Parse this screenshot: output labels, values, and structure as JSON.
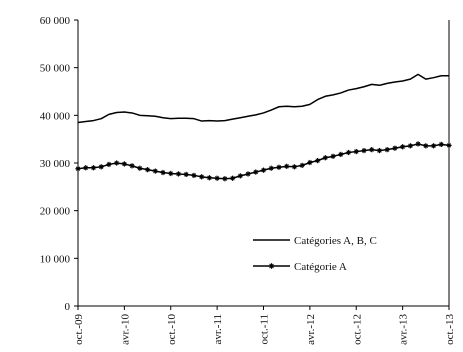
{
  "chart_data": {
    "type": "line",
    "title": "",
    "xlabel": "",
    "ylabel": "",
    "ylim": [
      0,
      60000
    ],
    "y_ticks": [
      0,
      10000,
      20000,
      30000,
      40000,
      50000,
      60000
    ],
    "y_tick_labels": [
      "0",
      "10 000",
      "20 000",
      "30 000",
      "40 000",
      "50 000",
      "60 000"
    ],
    "x_tick_labels": [
      "oct.-09",
      "avr.-10",
      "oct.-10",
      "avr.-11",
      "oct.-11",
      "avr.-12",
      "oct.-12",
      "avr.-13",
      "oct.-13"
    ],
    "x_tick_index": [
      0,
      6,
      12,
      18,
      24,
      30,
      36,
      42,
      48
    ],
    "grid": false,
    "legend_position": "lower-right",
    "series": [
      {
        "name": "Catégories A, B, C",
        "marker": "none",
        "color": "#000000",
        "values": [
          38500,
          38700,
          38900,
          39300,
          40200,
          40600,
          40700,
          40500,
          40000,
          39900,
          39800,
          39500,
          39300,
          39400,
          39400,
          39300,
          38800,
          38900,
          38800,
          38900,
          39200,
          39500,
          39800,
          40100,
          40500,
          41100,
          41800,
          41900,
          41800,
          41900,
          42300,
          43300,
          44000,
          44300,
          44700,
          45300,
          45600,
          46000,
          46500,
          46300,
          46700,
          47000,
          47200,
          47600,
          48600,
          47600,
          47900,
          48300,
          48300
        ]
      },
      {
        "name": "Catégorie A",
        "marker": "star",
        "color": "#000000",
        "values": [
          28800,
          29000,
          29000,
          29200,
          29700,
          30000,
          29800,
          29400,
          28900,
          28600,
          28300,
          28000,
          27800,
          27700,
          27600,
          27400,
          27100,
          26900,
          26800,
          26700,
          26800,
          27300,
          27700,
          28100,
          28500,
          28900,
          29100,
          29300,
          29200,
          29500,
          30100,
          30500,
          31100,
          31400,
          31800,
          32200,
          32400,
          32600,
          32800,
          32600,
          32800,
          33100,
          33400,
          33600,
          34000,
          33600,
          33600,
          33900,
          33700
        ]
      }
    ]
  }
}
